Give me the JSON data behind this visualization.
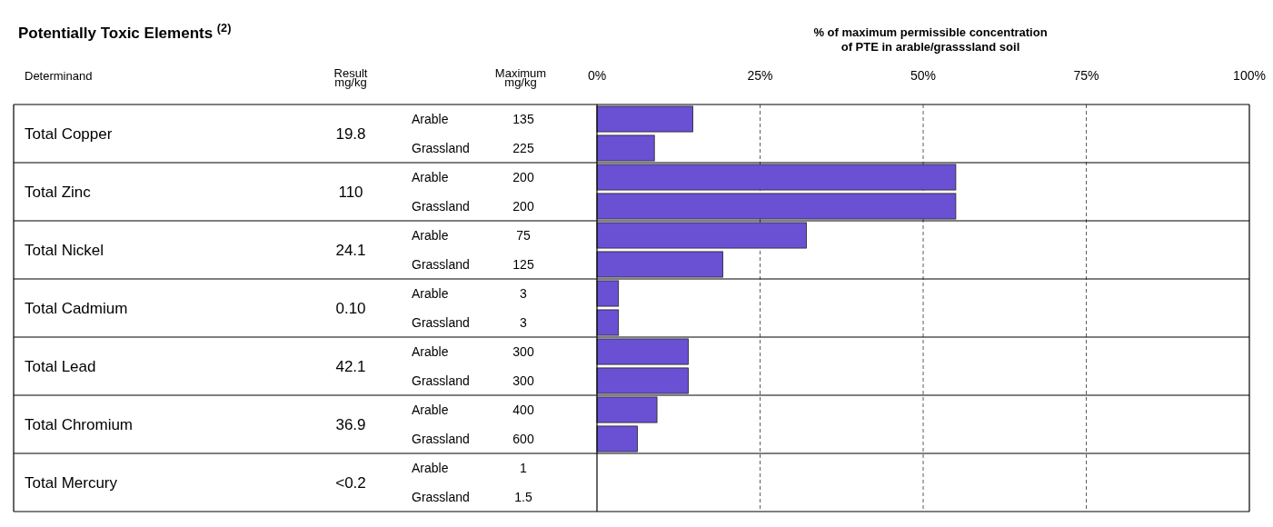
{
  "chart_data": {
    "type": "bar",
    "orientation": "horizontal",
    "title": "Potentially Toxic Elements $^{(2)}$",
    "xlabel": "% of maximum permissible concentration of PTE in arable/grasssland soil",
    "categories": [
      "Arable",
      "Grassland",
      "Arable",
      "Grassland",
      "Arable",
      "Grassland",
      "Arable",
      "Grassland",
      "Arable",
      "Grassland",
      "Arable",
      "Grassland",
      "Arable",
      "Grassland"
    ],
    "values": [
      14.7,
      8.8,
      55,
      55,
      32.1,
      19.3,
      3.3,
      3.3,
      14.0,
      14.0,
      9.2,
      6.2,
      null,
      null
    ],
    "color": "#6a50d3",
    "xlim": [
      0,
      100
    ],
    "xticks": [
      {
        "value": 0,
        "label": "0%"
      },
      {
        "value": 25,
        "label": "25%"
      },
      {
        "value": 50,
        "label": "50%"
      },
      {
        "value": 75,
        "label": "75%"
      },
      {
        "value": 100,
        "label": "100%"
      }
    ],
    "grid": "x",
    "annotations": [
      "Determinand",
      "Result mg/kg",
      "Maximum mg/kg",
      "Total Copper",
      "19.8",
      "135",
      "225",
      "Total Zinc",
      "110",
      "200",
      "200",
      "Total Nickel",
      "24.1",
      "75",
      "125",
      "Total Cadmium",
      "0.10",
      "3",
      "3",
      "Total Lead",
      "42.1",
      "300",
      "300",
      "Total Chromium",
      "36.9",
      "400",
      "600",
      "Total Mercury",
      "<0.2",
      "1",
      "1.5"
    ]
  }
}
